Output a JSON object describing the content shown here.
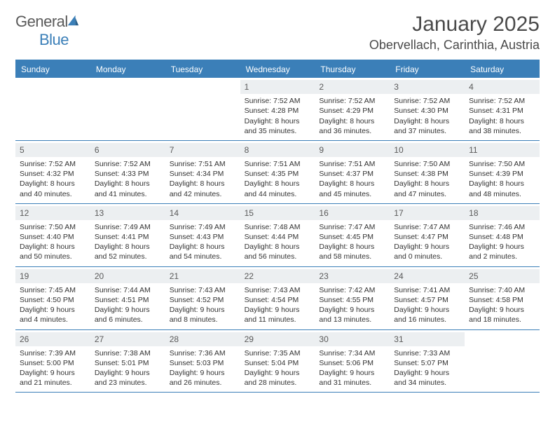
{
  "logo": {
    "text_gray": "General",
    "text_blue": "Blue"
  },
  "title": "January 2025",
  "location": "Obervellach, Carinthia, Austria",
  "colors": {
    "header_bar": "#3b7fb8",
    "daynum_bg": "#eceff1",
    "text": "#333333",
    "title_text": "#4a4a4a",
    "logo_gray": "#5a5a5a",
    "logo_blue": "#3b7fb8"
  },
  "weekdays": [
    "Sunday",
    "Monday",
    "Tuesday",
    "Wednesday",
    "Thursday",
    "Friday",
    "Saturday"
  ],
  "weeks": [
    [
      null,
      null,
      null,
      {
        "num": "1",
        "sunrise": "7:52 AM",
        "sunset": "4:28 PM",
        "daylight": "8 hours and 35 minutes."
      },
      {
        "num": "2",
        "sunrise": "7:52 AM",
        "sunset": "4:29 PM",
        "daylight": "8 hours and 36 minutes."
      },
      {
        "num": "3",
        "sunrise": "7:52 AM",
        "sunset": "4:30 PM",
        "daylight": "8 hours and 37 minutes."
      },
      {
        "num": "4",
        "sunrise": "7:52 AM",
        "sunset": "4:31 PM",
        "daylight": "8 hours and 38 minutes."
      }
    ],
    [
      {
        "num": "5",
        "sunrise": "7:52 AM",
        "sunset": "4:32 PM",
        "daylight": "8 hours and 40 minutes."
      },
      {
        "num": "6",
        "sunrise": "7:52 AM",
        "sunset": "4:33 PM",
        "daylight": "8 hours and 41 minutes."
      },
      {
        "num": "7",
        "sunrise": "7:51 AM",
        "sunset": "4:34 PM",
        "daylight": "8 hours and 42 minutes."
      },
      {
        "num": "8",
        "sunrise": "7:51 AM",
        "sunset": "4:35 PM",
        "daylight": "8 hours and 44 minutes."
      },
      {
        "num": "9",
        "sunrise": "7:51 AM",
        "sunset": "4:37 PM",
        "daylight": "8 hours and 45 minutes."
      },
      {
        "num": "10",
        "sunrise": "7:50 AM",
        "sunset": "4:38 PM",
        "daylight": "8 hours and 47 minutes."
      },
      {
        "num": "11",
        "sunrise": "7:50 AM",
        "sunset": "4:39 PM",
        "daylight": "8 hours and 48 minutes."
      }
    ],
    [
      {
        "num": "12",
        "sunrise": "7:50 AM",
        "sunset": "4:40 PM",
        "daylight": "8 hours and 50 minutes."
      },
      {
        "num": "13",
        "sunrise": "7:49 AM",
        "sunset": "4:41 PM",
        "daylight": "8 hours and 52 minutes."
      },
      {
        "num": "14",
        "sunrise": "7:49 AM",
        "sunset": "4:43 PM",
        "daylight": "8 hours and 54 minutes."
      },
      {
        "num": "15",
        "sunrise": "7:48 AM",
        "sunset": "4:44 PM",
        "daylight": "8 hours and 56 minutes."
      },
      {
        "num": "16",
        "sunrise": "7:47 AM",
        "sunset": "4:45 PM",
        "daylight": "8 hours and 58 minutes."
      },
      {
        "num": "17",
        "sunrise": "7:47 AM",
        "sunset": "4:47 PM",
        "daylight": "9 hours and 0 minutes."
      },
      {
        "num": "18",
        "sunrise": "7:46 AM",
        "sunset": "4:48 PM",
        "daylight": "9 hours and 2 minutes."
      }
    ],
    [
      {
        "num": "19",
        "sunrise": "7:45 AM",
        "sunset": "4:50 PM",
        "daylight": "9 hours and 4 minutes."
      },
      {
        "num": "20",
        "sunrise": "7:44 AM",
        "sunset": "4:51 PM",
        "daylight": "9 hours and 6 minutes."
      },
      {
        "num": "21",
        "sunrise": "7:43 AM",
        "sunset": "4:52 PM",
        "daylight": "9 hours and 8 minutes."
      },
      {
        "num": "22",
        "sunrise": "7:43 AM",
        "sunset": "4:54 PM",
        "daylight": "9 hours and 11 minutes."
      },
      {
        "num": "23",
        "sunrise": "7:42 AM",
        "sunset": "4:55 PM",
        "daylight": "9 hours and 13 minutes."
      },
      {
        "num": "24",
        "sunrise": "7:41 AM",
        "sunset": "4:57 PM",
        "daylight": "9 hours and 16 minutes."
      },
      {
        "num": "25",
        "sunrise": "7:40 AM",
        "sunset": "4:58 PM",
        "daylight": "9 hours and 18 minutes."
      }
    ],
    [
      {
        "num": "26",
        "sunrise": "7:39 AM",
        "sunset": "5:00 PM",
        "daylight": "9 hours and 21 minutes."
      },
      {
        "num": "27",
        "sunrise": "7:38 AM",
        "sunset": "5:01 PM",
        "daylight": "9 hours and 23 minutes."
      },
      {
        "num": "28",
        "sunrise": "7:36 AM",
        "sunset": "5:03 PM",
        "daylight": "9 hours and 26 minutes."
      },
      {
        "num": "29",
        "sunrise": "7:35 AM",
        "sunset": "5:04 PM",
        "daylight": "9 hours and 28 minutes."
      },
      {
        "num": "30",
        "sunrise": "7:34 AM",
        "sunset": "5:06 PM",
        "daylight": "9 hours and 31 minutes."
      },
      {
        "num": "31",
        "sunrise": "7:33 AM",
        "sunset": "5:07 PM",
        "daylight": "9 hours and 34 minutes."
      },
      null
    ]
  ],
  "labels": {
    "sunrise": "Sunrise:",
    "sunset": "Sunset:",
    "daylight": "Daylight:"
  }
}
